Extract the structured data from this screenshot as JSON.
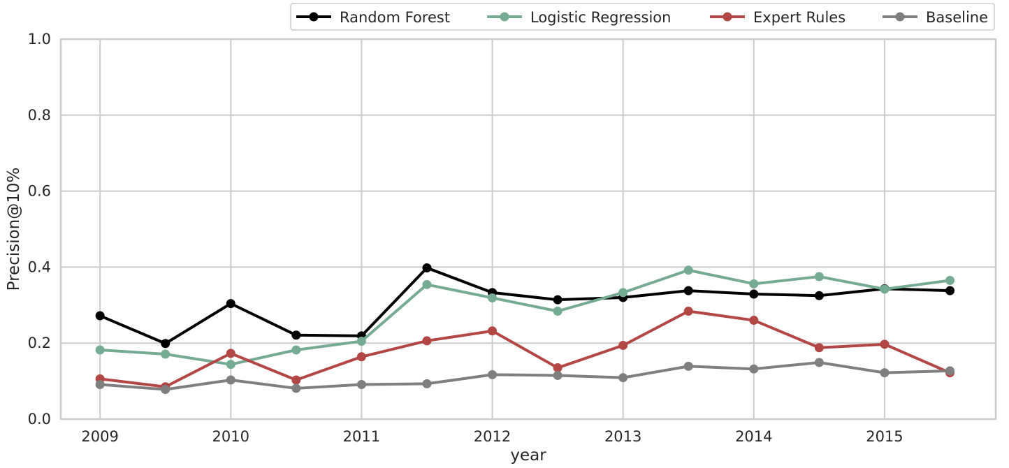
{
  "chart_data": {
    "type": "line",
    "xlabel": "year",
    "ylabel": "Precision@10%",
    "xlim": [
      2008.7,
      2015.85
    ],
    "ylim": [
      0,
      1
    ],
    "xticks": [
      2009,
      2010,
      2011,
      2012,
      2013,
      2014,
      2015
    ],
    "yticks": [
      0.0,
      0.2,
      0.4,
      0.6,
      0.8,
      1.0
    ],
    "ytick_labels": [
      "0.0",
      "0.2",
      "0.4",
      "0.6",
      "0.8",
      "1.0"
    ],
    "grid": true,
    "legend_position": "top-right",
    "x": [
      2009,
      2009.5,
      2010,
      2010.5,
      2011,
      2011.5,
      2012,
      2012.5,
      2013,
      2013.5,
      2014,
      2014.5,
      2015,
      2015.5
    ],
    "series": [
      {
        "name": "Random Forest",
        "color": "#000000",
        "values": [
          0.272,
          0.199,
          0.304,
          0.221,
          0.219,
          0.398,
          0.333,
          0.314,
          0.32,
          0.338,
          0.329,
          0.325,
          0.343,
          0.338
        ]
      },
      {
        "name": "Logistic Regression",
        "color": "#76ab93",
        "values": [
          0.182,
          0.171,
          0.144,
          0.182,
          0.205,
          0.354,
          0.319,
          0.284,
          0.333,
          0.392,
          0.356,
          0.375,
          0.342,
          0.365
        ]
      },
      {
        "name": "Expert Rules",
        "color": "#b24745",
        "values": [
          0.106,
          0.085,
          0.173,
          0.103,
          0.164,
          0.206,
          0.232,
          0.135,
          0.194,
          0.284,
          0.26,
          0.188,
          0.197,
          0.122
        ]
      },
      {
        "name": "Baseline",
        "color": "#7f7f7f",
        "values": [
          0.091,
          0.078,
          0.103,
          0.081,
          0.091,
          0.093,
          0.117,
          0.115,
          0.109,
          0.139,
          0.132,
          0.149,
          0.122,
          0.127
        ]
      }
    ]
  }
}
